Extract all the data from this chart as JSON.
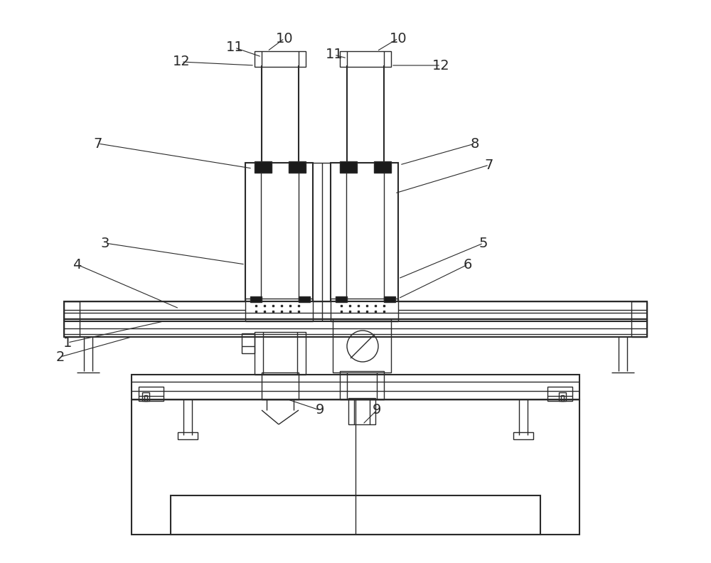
{
  "bg_color": "#ffffff",
  "line_color": "#2a2a2a",
  "lw": 1.0,
  "lw2": 1.5,
  "lw3": 2.0,
  "fig_width": 10.0,
  "fig_height": 7.92
}
